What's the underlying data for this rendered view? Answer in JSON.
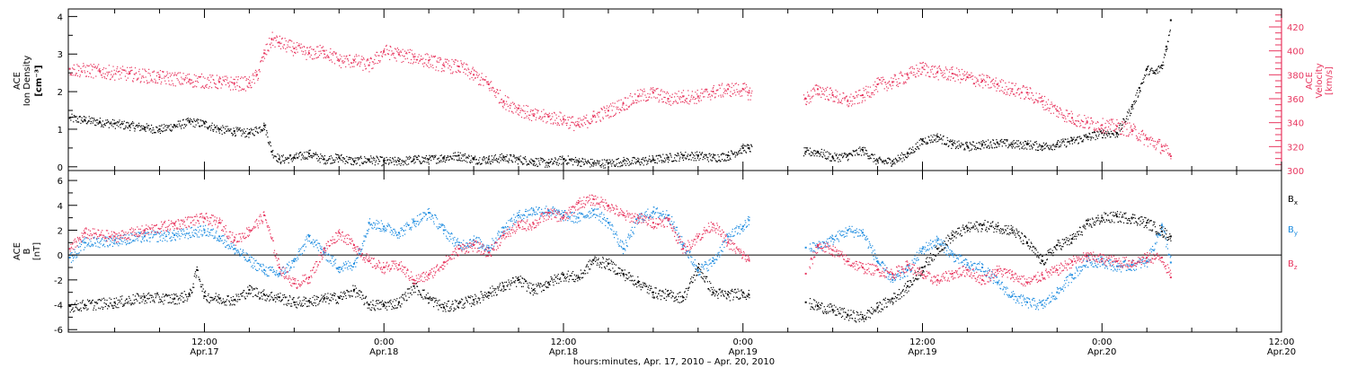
{
  "figure": {
    "xlabel": "hours:minutes, Apr. 17, 2010 – Apr. 20, 2010",
    "x_ticks": [
      {
        "hour": 12,
        "time": "12:00",
        "date": "Apr.17"
      },
      {
        "hour": 24,
        "time": "0:00",
        "date": "Apr.18"
      },
      {
        "hour": 36,
        "time": "12:00",
        "date": "Apr.18"
      },
      {
        "hour": 48,
        "time": "0:00",
        "date": "Apr.19"
      },
      {
        "hour": 60,
        "time": "12:00",
        "date": "Apr.19"
      },
      {
        "hour": 72,
        "time": "0:00",
        "date": "Apr.20"
      },
      {
        "hour": 84,
        "time": "12:00",
        "date": "Apr.20"
      }
    ]
  },
  "chart_data": [
    {
      "type": "scatter",
      "panel": "plasma",
      "x_unit": "hours since 2010-04-17 00:00",
      "xlim": [
        2.9,
        84
      ],
      "ylabel_left": [
        "ACE",
        "Ion Density",
        "[cm⁻³]"
      ],
      "ylim_left": [
        -0.1,
        4.2
      ],
      "yticks_left": [
        "0",
        "1",
        "2",
        "3",
        "4"
      ],
      "ylabel_right": [
        "ACE",
        "Velocity",
        "[km/s]"
      ],
      "ylim_right": [
        300,
        435
      ],
      "yticks_right": [
        "300",
        "320",
        "340",
        "360",
        "380",
        "400",
        "420"
      ],
      "gaps": [
        [
          48.6,
          52.0
        ]
      ],
      "series": [
        {
          "name": "Ion Density",
          "axis": "left",
          "color": "#000000",
          "x": [
            3,
            4,
            5,
            6,
            7,
            8,
            9,
            10,
            11,
            12,
            13,
            14,
            15,
            16,
            16.5,
            17,
            18,
            19,
            20,
            21,
            22,
            23,
            24,
            25,
            26,
            27,
            28,
            29,
            30,
            31,
            32,
            33,
            34,
            35,
            36,
            37,
            38,
            39,
            40,
            41,
            42,
            43,
            44,
            45,
            46,
            47,
            48,
            48.4,
            52.2,
            53,
            54,
            55,
            56,
            57,
            58,
            59,
            60,
            61,
            62,
            63,
            64,
            65,
            66,
            67,
            68,
            69,
            70,
            71,
            72,
            73,
            74,
            74.5,
            75,
            75.5,
            76,
            76.3,
            76.6
          ],
          "y": [
            1.3,
            1.25,
            1.2,
            1.15,
            1.1,
            1.05,
            1.0,
            1.1,
            1.2,
            1.15,
            1.0,
            0.95,
            0.9,
            1.1,
            0.4,
            0.2,
            0.25,
            0.35,
            0.2,
            0.25,
            0.15,
            0.2,
            0.15,
            0.15,
            0.2,
            0.2,
            0.25,
            0.3,
            0.2,
            0.2,
            0.25,
            0.2,
            0.15,
            0.1,
            0.2,
            0.15,
            0.1,
            0.1,
            0.15,
            0.15,
            0.2,
            0.25,
            0.3,
            0.3,
            0.25,
            0.3,
            0.5,
            0.5,
            0.4,
            0.4,
            0.25,
            0.3,
            0.45,
            0.15,
            0.15,
            0.35,
            0.7,
            0.8,
            0.6,
            0.55,
            0.6,
            0.65,
            0.6,
            0.6,
            0.55,
            0.6,
            0.7,
            0.8,
            0.9,
            0.9,
            1.6,
            2.1,
            2.6,
            2.5,
            2.7,
            3.2,
            3.9
          ]
        },
        {
          "name": "Velocity",
          "axis": "right",
          "color": "#e8365f",
          "x": [
            3,
            5,
            7,
            9,
            11,
            13,
            14,
            15,
            15.5,
            16,
            16.5,
            17,
            18,
            19,
            20,
            21,
            22,
            23,
            24,
            25,
            26,
            27,
            28,
            29,
            30,
            31,
            32,
            33,
            34,
            35,
            36,
            37,
            38,
            39,
            40,
            41,
            42,
            43,
            44,
            45,
            46,
            47,
            48,
            48.4,
            52.2,
            53,
            54,
            55,
            56,
            57,
            58,
            59,
            60,
            61,
            62,
            63,
            64,
            65,
            66,
            67,
            68,
            69,
            70,
            71,
            72,
            73,
            74,
            75,
            76,
            76.6
          ],
          "y": [
            385,
            383,
            381,
            378,
            376,
            374,
            373,
            373,
            380,
            398,
            410,
            407,
            402,
            398,
            400,
            392,
            392,
            388,
            400,
            397,
            395,
            392,
            388,
            387,
            380,
            372,
            358,
            352,
            346,
            345,
            343,
            338,
            345,
            350,
            356,
            362,
            365,
            360,
            362,
            362,
            366,
            368,
            368,
            365,
            360,
            368,
            363,
            358,
            363,
            372,
            374,
            380,
            386,
            382,
            381,
            378,
            375,
            372,
            368,
            365,
            358,
            350,
            344,
            340,
            338,
            337,
            334,
            326,
            320,
            312
          ]
        }
      ]
    },
    {
      "type": "scatter",
      "panel": "magnetic field",
      "x_unit": "hours since 2010-04-17 00:00",
      "xlim": [
        2.9,
        84
      ],
      "ylabel": [
        "ACE",
        "B",
        "[nT]"
      ],
      "ylim": [
        -6.2,
        6.8
      ],
      "yticks": [
        "-6",
        "-4",
        "-2",
        "0",
        "2",
        "4",
        "6"
      ],
      "zero_line": true,
      "gaps": [
        [
          48.4,
          52.4
        ]
      ],
      "series": [
        {
          "name": "Bx",
          "color": "#000000",
          "x": [
            3,
            4,
            6,
            8,
            10,
            11,
            11.5,
            12,
            13,
            14,
            15,
            16,
            17,
            18,
            19,
            20,
            21,
            22,
            23,
            24,
            25,
            26,
            27,
            28,
            29,
            30,
            31,
            32,
            33,
            34,
            35,
            36,
            37,
            38,
            39,
            40,
            41,
            42,
            43,
            44,
            45,
            46,
            47,
            48,
            48.4,
            52.2,
            53,
            54,
            55,
            56,
            57,
            58,
            59,
            60,
            61,
            62,
            63,
            64,
            65,
            66,
            67,
            68,
            69,
            70,
            71,
            72,
            73,
            74,
            75,
            76,
            76.6
          ],
          "y": [
            -4.1,
            -4.0,
            -3.8,
            -3.4,
            -3.5,
            -3.2,
            -1.2,
            -3.3,
            -3.5,
            -3.6,
            -2.8,
            -3.2,
            -3.4,
            -3.8,
            -3.7,
            -3.5,
            -3.4,
            -2.8,
            -4.0,
            -4.0,
            -3.8,
            -2.5,
            -3.5,
            -4.2,
            -3.9,
            -3.6,
            -3.0,
            -2.5,
            -2.0,
            -2.8,
            -2.2,
            -1.6,
            -1.8,
            -0.4,
            -0.7,
            -1.5,
            -2.2,
            -3.0,
            -3.2,
            -3.4,
            -1.0,
            -3.0,
            -3.2,
            -3.0,
            -3.2,
            -3.8,
            -4.1,
            -4.4,
            -4.8,
            -5.0,
            -4.2,
            -3.5,
            -2.5,
            -1.0,
            0.5,
            1.6,
            2.2,
            2.4,
            2.3,
            2.0,
            1.0,
            -0.5,
            0.8,
            1.3,
            2.5,
            3.0,
            3.1,
            3.0,
            2.6,
            1.9,
            1.5
          ]
        },
        {
          "name": "By",
          "color": "#1d8ce0",
          "x": [
            3,
            4,
            6,
            8,
            10,
            12,
            13,
            14,
            15,
            16,
            17,
            18,
            19,
            20,
            21,
            22,
            23,
            24,
            25,
            26,
            27,
            28,
            29,
            30,
            31,
            32,
            33,
            34,
            35,
            36,
            37,
            38,
            39,
            40,
            41,
            42,
            43,
            44,
            45,
            46,
            47,
            48,
            48.4,
            52.2,
            53,
            54,
            55,
            56,
            57,
            58,
            59,
            60,
            61,
            62,
            63,
            64,
            65,
            66,
            67,
            68,
            69,
            70,
            71,
            72,
            73,
            74,
            75,
            76,
            76.6
          ],
          "y": [
            -0.2,
            1.0,
            1.2,
            1.5,
            1.6,
            2.0,
            1.5,
            0.5,
            -0.4,
            -1.2,
            -1.5,
            -0.5,
            1.5,
            0.2,
            -1.0,
            -0.7,
            2.6,
            2.3,
            1.8,
            2.7,
            3.4,
            2.0,
            0.8,
            1.2,
            0.6,
            2.2,
            3.2,
            3.6,
            3.6,
            3.2,
            3.0,
            3.6,
            2.6,
            0.5,
            3.0,
            3.5,
            3.2,
            0.8,
            -1.2,
            -0.5,
            1.5,
            2.3,
            2.8,
            0.6,
            0.7,
            1.3,
            2.0,
            1.8,
            -0.5,
            -2.0,
            -1.2,
            0.5,
            1.2,
            0.0,
            -0.8,
            -1.0,
            -2.2,
            -3.3,
            -3.8,
            -4.0,
            -3.0,
            -1.6,
            -0.5,
            -0.5,
            -0.9,
            -0.8,
            -0.5,
            2.4,
            -0.6
          ]
        },
        {
          "name": "Bz",
          "color": "#e8365f",
          "x": [
            3,
            4,
            6,
            8,
            10,
            12,
            13,
            14,
            15,
            16,
            17,
            18,
            19,
            20,
            21,
            22,
            23,
            24,
            25,
            26,
            27,
            28,
            29,
            30,
            31,
            32,
            33,
            34,
            35,
            36,
            37,
            38,
            39,
            40,
            41,
            42,
            43,
            44,
            45,
            46,
            47,
            48,
            48.4,
            52.2,
            53,
            54,
            55,
            56,
            57,
            58,
            59,
            60,
            61,
            62,
            63,
            64,
            65,
            66,
            67,
            68,
            69,
            70,
            71,
            72,
            73,
            74,
            75,
            76,
            76.6
          ],
          "y": [
            0.5,
            1.8,
            1.5,
            2.0,
            2.5,
            3.0,
            2.6,
            1.2,
            2.0,
            3.2,
            -1.0,
            -2.3,
            -1.8,
            0.5,
            1.8,
            0.8,
            -0.5,
            -1.0,
            -0.8,
            -2.0,
            -1.6,
            -0.6,
            0.5,
            0.8,
            0.2,
            1.6,
            2.4,
            2.5,
            3.4,
            3.0,
            4.2,
            4.5,
            4.0,
            3.2,
            3.0,
            2.6,
            2.8,
            0.5,
            1.5,
            2.5,
            1.0,
            0.0,
            -0.4,
            -1.5,
            0.8,
            0.4,
            -0.5,
            -1.0,
            -1.2,
            -1.5,
            -0.8,
            -1.6,
            -2.0,
            -1.5,
            -1.2,
            -2.0,
            -1.2,
            -1.6,
            -2.2,
            -1.6,
            -1.2,
            -0.5,
            -0.1,
            -0.3,
            -0.5,
            -0.6,
            -0.2,
            -0.2,
            -1.8
          ]
        }
      ]
    }
  ]
}
